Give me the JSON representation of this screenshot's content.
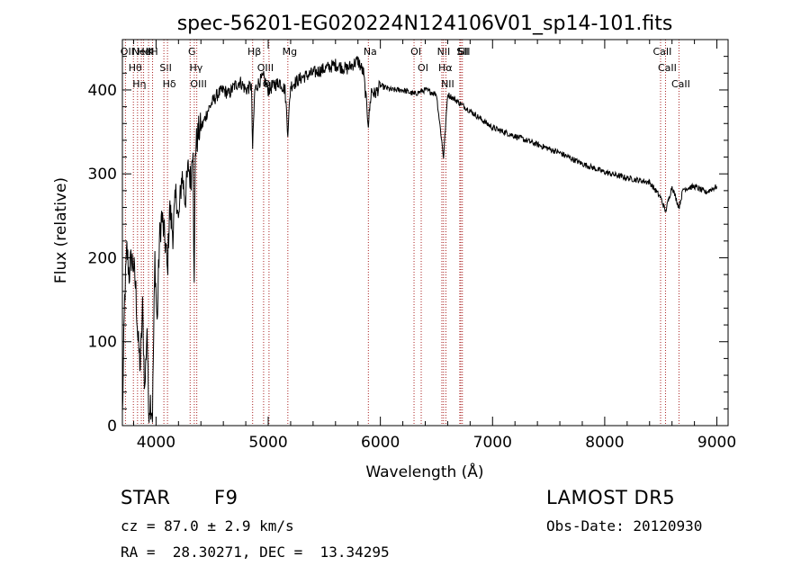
{
  "chart_data": {
    "type": "line",
    "title": "spec-56201-EG020224N124106V01_sp14-101.fits",
    "xlabel": "Wavelength (Å)",
    "ylabel": "Flux (relative)",
    "xlim": [
      3700,
      9100
    ],
    "ylim": [
      0,
      460
    ],
    "xticks": [
      "4000",
      "5000",
      "6000",
      "7000",
      "8000",
      "9000"
    ],
    "yticks": [
      "0",
      "100",
      "200",
      "300",
      "400"
    ],
    "grid": false,
    "series": [
      {
        "x": [
          3700,
          3720,
          3740,
          3760,
          3780,
          3800,
          3820,
          3840,
          3860,
          3880,
          3900,
          3920,
          3933,
          3950,
          3968,
          3990,
          4010,
          4030,
          4050,
          4070,
          4090,
          4101,
          4120,
          4150,
          4180,
          4200,
          4230,
          4260,
          4290,
          4310,
          4330,
          4340,
          4350,
          4380,
          4420,
          4460,
          4500,
          4550,
          4600,
          4650,
          4700,
          4750,
          4800,
          4850,
          4861,
          4880,
          4920,
          4960,
          5000,
          5050,
          5100,
          5150,
          5175,
          5200,
          5250,
          5300,
          5400,
          5500,
          5600,
          5700,
          5800,
          5850,
          5893,
          5920,
          5950,
          6000,
          6100,
          6200,
          6300,
          6400,
          6500,
          6563,
          6600,
          6700,
          6800,
          6900,
          7000,
          7200,
          7400,
          7600,
          7800,
          8000,
          8200,
          8400,
          8498,
          8542,
          8600,
          8662,
          8700,
          8800,
          8900,
          9000
        ],
        "values": [
          10,
          150,
          210,
          180,
          200,
          190,
          160,
          100,
          70,
          140,
          40,
          120,
          20,
          30,
          15,
          200,
          120,
          220,
          250,
          230,
          210,
          180,
          260,
          230,
          280,
          240,
          300,
          270,
          310,
          290,
          340,
          160,
          330,
          350,
          360,
          375,
          385,
          395,
          400,
          395,
          405,
          410,
          400,
          405,
          330,
          400,
          410,
          415,
          400,
          405,
          410,
          400,
          350,
          405,
          410,
          415,
          420,
          425,
          430,
          425,
          435,
          420,
          360,
          400,
          395,
          405,
          400,
          400,
          395,
          400,
          395,
          320,
          395,
          385,
          375,
          365,
          355,
          345,
          335,
          325,
          312,
          302,
          295,
          290,
          272,
          255,
          285,
          260,
          282,
          285,
          278,
          285
        ]
      }
    ],
    "lines": [
      {
        "x": 3727,
        "label": "OII"
      },
      {
        "x": 3798,
        "label": "Hθ"
      },
      {
        "x": 3835,
        "label": "Hη"
      },
      {
        "x": 3869,
        "label": "NeIII"
      },
      {
        "x": 3889,
        "label": "HeI"
      },
      {
        "x": 3933,
        "label": "K"
      },
      {
        "x": 3969,
        "label": "H"
      },
      {
        "x": 4070,
        "label": "SII"
      },
      {
        "x": 4102,
        "label": "Hδ"
      },
      {
        "x": 4304,
        "label": "G"
      },
      {
        "x": 4341,
        "label": "Hγ"
      },
      {
        "x": 4363,
        "label": "OIII"
      },
      {
        "x": 4861,
        "label": "Hβ"
      },
      {
        "x": 4959,
        "label": "OIII"
      },
      {
        "x": 5007,
        "label": "OIII"
      },
      {
        "x": 5175,
        "label": "Mg"
      },
      {
        "x": 5893,
        "label": "Na"
      },
      {
        "x": 6300,
        "label": "OI"
      },
      {
        "x": 6364,
        "label": "OI"
      },
      {
        "x": 6548,
        "label": "NII"
      },
      {
        "x": 6563,
        "label": "Hα"
      },
      {
        "x": 6584,
        "label": "NII"
      },
      {
        "x": 6708,
        "label": "Li"
      },
      {
        "x": 6717,
        "label": "SII"
      },
      {
        "x": 6731,
        "label": "SII"
      },
      {
        "x": 8498,
        "label": "CaII"
      },
      {
        "x": 8542,
        "label": "CaII"
      },
      {
        "x": 8662,
        "label": "CaII"
      }
    ]
  },
  "info": {
    "class": "STAR",
    "subclass": "F9",
    "cz": "cz = 87.0 ± 2.9 km/s",
    "radec": "RA =  28.30271, DEC =  13.34295",
    "survey": "LAMOST DR5",
    "obsdate": "Obs-Date: 20120930"
  },
  "colors": {
    "line_marker": "#aa2222",
    "spectrum": "#000000"
  }
}
